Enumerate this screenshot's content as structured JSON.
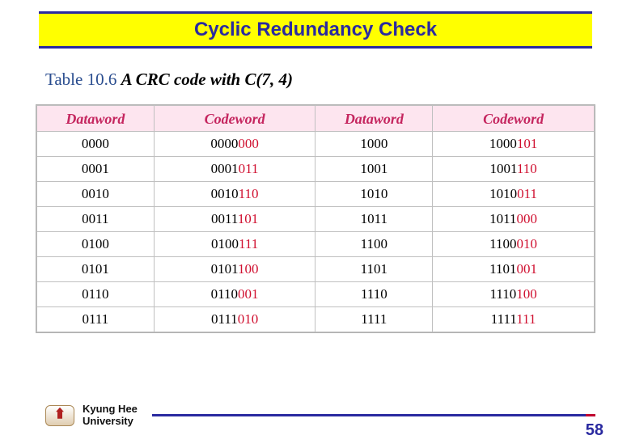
{
  "slide": {
    "title": "Cyclic Redundancy Check",
    "caption_lead": "Table 10.6",
    "caption_desc": "  A CRC code with C(7, 4)"
  },
  "table": {
    "type": "table",
    "headers": [
      "Dataword",
      "Codeword",
      "Dataword",
      "Codeword"
    ],
    "col_widths": [
      "21%",
      "29%",
      "21%",
      "29%"
    ],
    "header_bg": "#fde5ef",
    "header_color": "#c5265f",
    "suffix_color": "#d01030",
    "border_color": "#c0c0c0",
    "rows": [
      {
        "dw1": "0000",
        "cw1p": "0000",
        "cw1s": "000",
        "dw2": "1000",
        "cw2p": "1000",
        "cw2s": "101"
      },
      {
        "dw1": "0001",
        "cw1p": "0001",
        "cw1s": "011",
        "dw2": "1001",
        "cw2p": "1001",
        "cw2s": "110"
      },
      {
        "dw1": "0010",
        "cw1p": "0010",
        "cw1s": "110",
        "dw2": "1010",
        "cw2p": "1010",
        "cw2s": "011"
      },
      {
        "dw1": "0011",
        "cw1p": "0011",
        "cw1s": "101",
        "dw2": "1011",
        "cw2p": "1011",
        "cw2s": "000"
      },
      {
        "dw1": "0100",
        "cw1p": "0100",
        "cw1s": "111",
        "dw2": "1100",
        "cw2p": "1100",
        "cw2s": "010"
      },
      {
        "dw1": "0101",
        "cw1p": "0101",
        "cw1s": "100",
        "dw2": "1101",
        "cw2p": "1101",
        "cw2s": "001"
      },
      {
        "dw1": "0110",
        "cw1p": "0110",
        "cw1s": "001",
        "dw2": "1110",
        "cw2p": "1110",
        "cw2s": "100"
      },
      {
        "dw1": "0111",
        "cw1p": "0111",
        "cw1s": "010",
        "dw2": "1111",
        "cw2p": "1111",
        "cw2s": "111"
      }
    ]
  },
  "footer": {
    "institution_line1": "Kyung Hee",
    "institution_line2": "University",
    "page_number": "58",
    "rule_color": "#2a2aa0"
  }
}
